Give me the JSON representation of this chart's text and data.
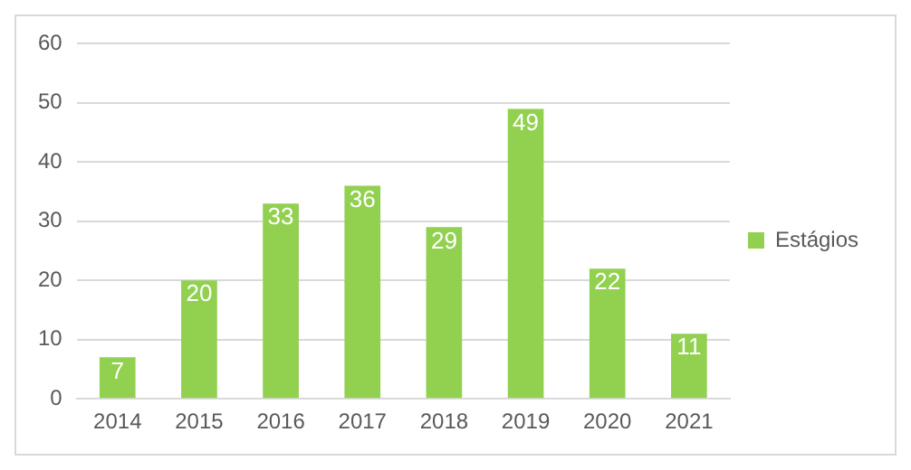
{
  "chart_data": {
    "type": "bar",
    "categories": [
      "2014",
      "2015",
      "2016",
      "2017",
      "2018",
      "2019",
      "2020",
      "2021"
    ],
    "series": [
      {
        "name": "Estágios",
        "color": "#92d050",
        "values": [
          7,
          20,
          33,
          36,
          29,
          49,
          22,
          11
        ]
      }
    ],
    "ylim": [
      0,
      60
    ],
    "yticks": [
      0,
      10,
      20,
      30,
      40,
      50,
      60
    ],
    "grid": "y",
    "legend": "right",
    "data_labels": true
  }
}
